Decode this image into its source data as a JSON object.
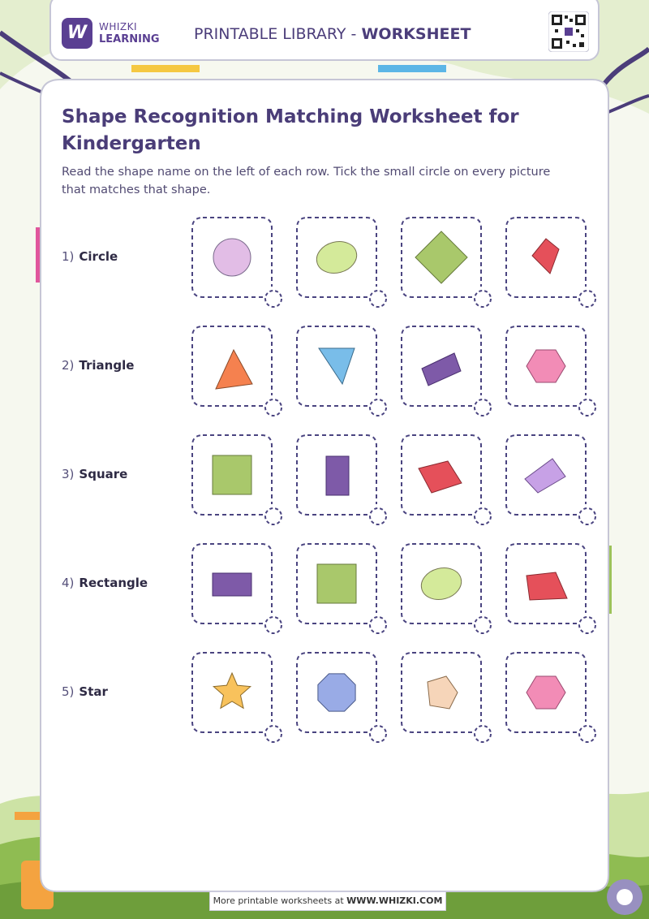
{
  "header": {
    "brand_line1": "WHIZKI",
    "brand_line2": "LEARNING",
    "title_prefix": "PRINTABLE LIBRARY - ",
    "title_strong": "WORKSHEET",
    "logo_icon": "w-logo-icon",
    "qr_icon": "qr-code-icon"
  },
  "worksheet": {
    "title": "Shape Recognition Matching Worksheet for Kindergarten",
    "instructions": "Read the shape name on the left of each row. Tick the small circle on every picture that matches that shape.",
    "rows": [
      {
        "number": "1)",
        "name": "Circle",
        "items": [
          {
            "shape": "circle",
            "color": "#e2bde6"
          },
          {
            "shape": "ellipse",
            "color": "#d4ea9a"
          },
          {
            "shape": "diamond",
            "color": "#a9c86b"
          },
          {
            "shape": "kite",
            "color": "#e5505a"
          }
        ]
      },
      {
        "number": "2)",
        "name": "Triangle",
        "items": [
          {
            "shape": "triangle",
            "color": "#f5814f"
          },
          {
            "shape": "triangle-down",
            "color": "#79bde9"
          },
          {
            "shape": "rotated-rectangle",
            "color": "#7e5aa8"
          },
          {
            "shape": "hexagon",
            "color": "#f28cb6"
          }
        ]
      },
      {
        "number": "3)",
        "name": "Square",
        "items": [
          {
            "shape": "square",
            "color": "#a9c86b"
          },
          {
            "shape": "rectangle-tall",
            "color": "#7e5aa8"
          },
          {
            "shape": "quadrilateral",
            "color": "#e5505a"
          },
          {
            "shape": "quadrilateral-tilted",
            "color": "#c7a1e6"
          }
        ]
      },
      {
        "number": "4)",
        "name": "Rectangle",
        "items": [
          {
            "shape": "rectangle",
            "color": "#7e5aa8"
          },
          {
            "shape": "square",
            "color": "#a9c86b"
          },
          {
            "shape": "ellipse",
            "color": "#d4ea9a"
          },
          {
            "shape": "trapezoid",
            "color": "#e5505a"
          }
        ]
      },
      {
        "number": "5)",
        "name": "Star",
        "items": [
          {
            "shape": "star",
            "color": "#f8c25c"
          },
          {
            "shape": "octagon",
            "color": "#99abe6"
          },
          {
            "shape": "pentagon",
            "color": "#f6d5b9"
          },
          {
            "shape": "hexagon",
            "color": "#f28cb6"
          }
        ]
      }
    ]
  },
  "footer": {
    "text_prefix": "More printable worksheets at ",
    "text_strong": "WWW.WHIZKI.COM"
  },
  "colors": {
    "accent": "#4a3d78",
    "card_border": "#4a4480",
    "panel_border": "#c6c6d6",
    "scene_green": "#8fbc52",
    "scene_light": "#c6df9a"
  }
}
